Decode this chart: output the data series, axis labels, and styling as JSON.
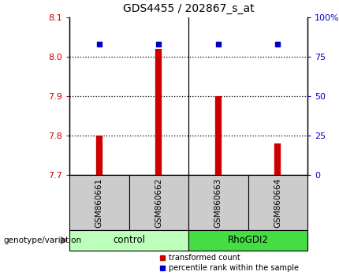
{
  "title": "GDS4455 / 202867_s_at",
  "samples": [
    "GSM860661",
    "GSM860662",
    "GSM860663",
    "GSM860664"
  ],
  "groups": [
    "control",
    "control",
    "RhoGDI2",
    "RhoGDI2"
  ],
  "bar_values": [
    7.8,
    8.02,
    7.9,
    7.78
  ],
  "bar_base": 7.7,
  "percentile_values": [
    83,
    83,
    83,
    83
  ],
  "ylim_left": [
    7.7,
    8.1
  ],
  "ylim_right": [
    0,
    100
  ],
  "yticks_left": [
    7.7,
    7.8,
    7.9,
    8.0,
    8.1
  ],
  "yticks_right": [
    0,
    25,
    50,
    75,
    100
  ],
  "ytick_right_labels": [
    "0",
    "25",
    "50",
    "75",
    "100%"
  ],
  "grid_values": [
    8.0,
    7.9,
    7.8
  ],
  "bar_color": "#cc0000",
  "dot_color": "#0000cc",
  "group_colors": {
    "control": "#bbffbb",
    "RhoGDI2": "#44dd44"
  },
  "left_tick_color": "#cc0000",
  "right_tick_color": "#0000cc",
  "sample_box_color": "#cccccc",
  "legend_red_label": "transformed count",
  "legend_blue_label": "percentile rank within the sample",
  "group_label": "genotype/variation"
}
